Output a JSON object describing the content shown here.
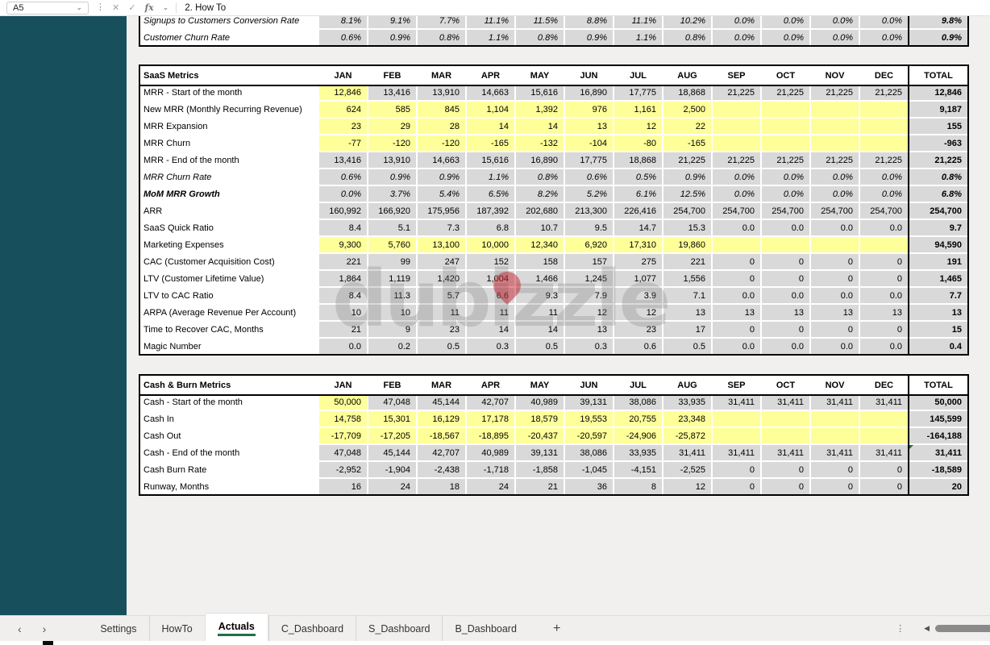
{
  "formula_bar": {
    "cell_ref": "A5",
    "formula": "2. How To"
  },
  "icons": {
    "chevron": "⌄",
    "kebab": "⋮",
    "cancel": "✕",
    "confirm": "✓",
    "fx": "fx",
    "nav_prev": "‹",
    "nav_next": "›",
    "scroll_left": "◀"
  },
  "colors": {
    "sidebar_teal": "#17505c",
    "accent_green": "#1e7145",
    "input_yellow": "#ffff99",
    "cell_gray": "#d9d9d9"
  },
  "months": [
    "JAN",
    "FEB",
    "MAR",
    "APR",
    "MAY",
    "JUN",
    "JUL",
    "AUG",
    "SEP",
    "OCT",
    "NOV",
    "DEC"
  ],
  "total_label": "TOTAL",
  "watermark": {
    "text": "dubizzle"
  },
  "tables": {
    "funnel": {
      "rows": [
        {
          "label": "Signups to Customers Conversion Rate",
          "style": "italic",
          "inputs": "none",
          "values": [
            "8.1%",
            "9.1%",
            "7.7%",
            "11.1%",
            "11.5%",
            "8.8%",
            "11.1%",
            "10.2%",
            "0.0%",
            "0.0%",
            "0.0%",
            "0.0%",
            "9.8%"
          ]
        },
        {
          "label": "Customer Churn Rate",
          "style": "italic",
          "inputs": "none",
          "values": [
            "0.6%",
            "0.9%",
            "0.8%",
            "1.1%",
            "0.8%",
            "0.9%",
            "1.1%",
            "0.8%",
            "0.0%",
            "0.0%",
            "0.0%",
            "0.0%",
            "0.9%"
          ]
        }
      ]
    },
    "saas": {
      "title": "SaaS Metrics",
      "rows": [
        {
          "label": "MRR - Start of the month",
          "style": "normal",
          "inputs": "first",
          "values": [
            "12,846",
            "13,416",
            "13,910",
            "14,663",
            "15,616",
            "16,890",
            "17,775",
            "18,868",
            "21,225",
            "21,225",
            "21,225",
            "21,225",
            "12,846"
          ]
        },
        {
          "label": "New MRR (Monthly Recurring Revenue)",
          "style": "normal",
          "inputs": "all",
          "values": [
            "624",
            "585",
            "845",
            "1,104",
            "1,392",
            "976",
            "1,161",
            "2,500",
            "",
            "",
            "",
            "",
            "9,187"
          ]
        },
        {
          "label": "MRR Expansion",
          "style": "normal",
          "inputs": "all",
          "values": [
            "23",
            "29",
            "28",
            "14",
            "14",
            "13",
            "12",
            "22",
            "",
            "",
            "",
            "",
            "155"
          ]
        },
        {
          "label": "MRR Churn",
          "style": "normal",
          "inputs": "all",
          "values": [
            "-77",
            "-120",
            "-120",
            "-165",
            "-132",
            "-104",
            "-80",
            "-165",
            "",
            "",
            "",
            "",
            "-963"
          ]
        },
        {
          "label": "MRR - End of the month",
          "style": "normal",
          "inputs": "none",
          "values": [
            "13,416",
            "13,910",
            "14,663",
            "15,616",
            "16,890",
            "17,775",
            "18,868",
            "21,225",
            "21,225",
            "21,225",
            "21,225",
            "21,225",
            "21,225"
          ]
        },
        {
          "label": "MRR Churn Rate",
          "style": "italic",
          "inputs": "none",
          "values": [
            "0.6%",
            "0.9%",
            "0.9%",
            "1.1%",
            "0.8%",
            "0.6%",
            "0.5%",
            "0.9%",
            "0.0%",
            "0.0%",
            "0.0%",
            "0.0%",
            "0.8%"
          ]
        },
        {
          "label": "MoM MRR Growth",
          "style": "bold-italic",
          "inputs": "none",
          "values": [
            "0.0%",
            "3.7%",
            "5.4%",
            "6.5%",
            "8.2%",
            "5.2%",
            "6.1%",
            "12.5%",
            "0.0%",
            "0.0%",
            "0.0%",
            "0.0%",
            "6.8%"
          ]
        },
        {
          "label": "ARR",
          "style": "normal",
          "inputs": "none",
          "values": [
            "160,992",
            "166,920",
            "175,956",
            "187,392",
            "202,680",
            "213,300",
            "226,416",
            "254,700",
            "254,700",
            "254,700",
            "254,700",
            "254,700",
            "254,700"
          ]
        },
        {
          "label": "SaaS Quick Ratio",
          "style": "normal",
          "inputs": "none",
          "values": [
            "8.4",
            "5.1",
            "7.3",
            "6.8",
            "10.7",
            "9.5",
            "14.7",
            "15.3",
            "0.0",
            "0.0",
            "0.0",
            "0.0",
            "9.7"
          ]
        },
        {
          "label": "Marketing Expenses",
          "style": "normal",
          "inputs": "all",
          "values": [
            "9,300",
            "5,760",
            "13,100",
            "10,000",
            "12,340",
            "6,920",
            "17,310",
            "19,860",
            "",
            "",
            "",
            "",
            "94,590"
          ]
        },
        {
          "label": "CAC (Customer Acquisition Cost)",
          "style": "normal",
          "inputs": "none",
          "values": [
            "221",
            "99",
            "247",
            "152",
            "158",
            "157",
            "275",
            "221",
            "0",
            "0",
            "0",
            "0",
            "191"
          ]
        },
        {
          "label": "LTV (Customer Lifetime Value)",
          "style": "normal",
          "inputs": "none",
          "values": [
            "1,864",
            "1,119",
            "1,420",
            "1,004",
            "1,466",
            "1,245",
            "1,077",
            "1,556",
            "0",
            "0",
            "0",
            "0",
            "1,465"
          ]
        },
        {
          "label": "LTV to CAC Ratio",
          "style": "normal",
          "inputs": "none",
          "values": [
            "8.4",
            "11.3",
            "5.7",
            "6.6",
            "9.3",
            "7.9",
            "3.9",
            "7.1",
            "0.0",
            "0.0",
            "0.0",
            "0.0",
            "7.7"
          ]
        },
        {
          "label": "ARPA (Average Revenue Per Account)",
          "style": "normal",
          "inputs": "none",
          "values": [
            "10",
            "10",
            "11",
            "11",
            "11",
            "12",
            "12",
            "13",
            "13",
            "13",
            "13",
            "13",
            "13"
          ]
        },
        {
          "label": "Time to Recover CAC, Months",
          "style": "normal",
          "inputs": "none",
          "values": [
            "21",
            "9",
            "23",
            "14",
            "14",
            "13",
            "23",
            "17",
            "0",
            "0",
            "0",
            "0",
            "15"
          ]
        },
        {
          "label": "Magic Number",
          "style": "normal",
          "inputs": "none",
          "values": [
            "0.0",
            "0.2",
            "0.5",
            "0.3",
            "0.5",
            "0.3",
            "0.6",
            "0.5",
            "0.0",
            "0.0",
            "0.0",
            "0.0",
            "0.4"
          ]
        }
      ]
    },
    "cash": {
      "title": "Cash & Burn Metrics",
      "rows": [
        {
          "label": "Cash - Start of the month",
          "style": "normal",
          "inputs": "first",
          "values": [
            "50,000",
            "47,048",
            "45,144",
            "42,707",
            "40,989",
            "39,131",
            "38,086",
            "33,935",
            "31,411",
            "31,411",
            "31,411",
            "31,411",
            "50,000"
          ]
        },
        {
          "label": "Cash In",
          "style": "normal",
          "inputs": "all",
          "values": [
            "14,758",
            "15,301",
            "16,129",
            "17,178",
            "18,579",
            "19,553",
            "20,755",
            "23,348",
            "",
            "",
            "",
            "",
            "145,599"
          ]
        },
        {
          "label": "Cash Out",
          "style": "normal",
          "inputs": "all",
          "values": [
            "-17,709",
            "-17,205",
            "-18,567",
            "-18,895",
            "-20,437",
            "-20,597",
            "-24,906",
            "-25,872",
            "",
            "",
            "",
            "",
            "-164,188"
          ]
        },
        {
          "label": "Cash - End of the month",
          "style": "normal",
          "inputs": "none",
          "flag": "green-triangle",
          "values": [
            "47,048",
            "45,144",
            "42,707",
            "40,989",
            "39,131",
            "38,086",
            "33,935",
            "31,411",
            "31,411",
            "31,411",
            "31,411",
            "31,411",
            "31,411"
          ]
        },
        {
          "label": "Cash Burn Rate",
          "style": "normal",
          "inputs": "none",
          "values": [
            "-2,952",
            "-1,904",
            "-2,438",
            "-1,718",
            "-1,858",
            "-1,045",
            "-4,151",
            "-2,525",
            "0",
            "0",
            "0",
            "0",
            "-18,589"
          ]
        },
        {
          "label": "Runway, Months",
          "style": "normal",
          "inputs": "none",
          "values": [
            "16",
            "24",
            "18",
            "24",
            "21",
            "36",
            "8",
            "12",
            "0",
            "0",
            "0",
            "0",
            "20"
          ]
        }
      ]
    }
  },
  "sheet_tabs": {
    "items": [
      {
        "label": "Settings",
        "active": false
      },
      {
        "label": "HowTo",
        "active": false
      },
      {
        "label": "Actuals",
        "active": true
      },
      {
        "label": "C_Dashboard",
        "active": false
      },
      {
        "label": "S_Dashboard",
        "active": false
      },
      {
        "label": "B_Dashboard",
        "active": false
      }
    ],
    "add_label": "+"
  }
}
